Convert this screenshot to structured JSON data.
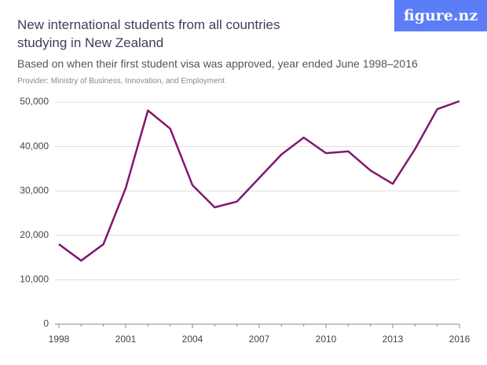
{
  "chart_data": {
    "type": "line",
    "title": "New international students from all countries studying in New Zealand",
    "subtitle": "Based on when their first student visa was approved, year ended June 1998–2016",
    "source": "Provider: Ministry of Business, Innovation, and Employment",
    "logo": "figure.nz",
    "x": [
      1998,
      1999,
      2000,
      2001,
      2002,
      2003,
      2004,
      2005,
      2006,
      2007,
      2008,
      2009,
      2010,
      2011,
      2012,
      2013,
      2014,
      2015,
      2016
    ],
    "series": [
      {
        "name": "New international students",
        "color": "#80176f",
        "values": [
          18000,
          14300,
          18000,
          30600,
          48100,
          44000,
          31300,
          26300,
          27600,
          32900,
          38200,
          42000,
          38500,
          38900,
          34600,
          31600,
          39400,
          48400,
          50200
        ]
      }
    ],
    "xlim": [
      1998,
      2016
    ],
    "xticks": [
      1998,
      2001,
      2004,
      2007,
      2010,
      2013,
      2016
    ],
    "ylim": [
      0,
      50000
    ],
    "yticks": [
      0,
      {
        "value": 10000,
        "label": "10,000"
      },
      {
        "value": 20000,
        "label": "20,000"
      },
      {
        "value": 30000,
        "label": "30,000"
      },
      {
        "value": 40000,
        "label": "40,000"
      },
      {
        "value": 50000,
        "label": "50,000"
      }
    ],
    "grid": true
  }
}
